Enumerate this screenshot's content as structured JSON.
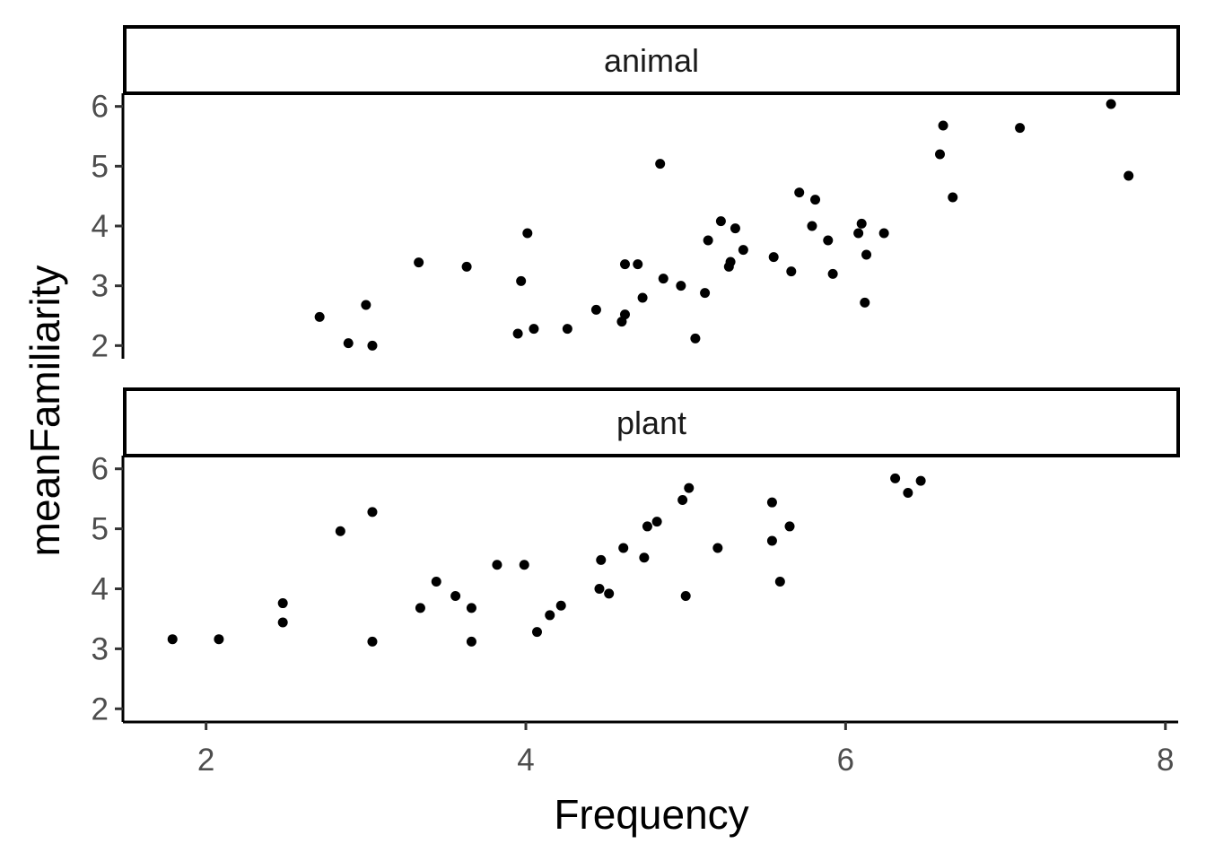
{
  "chart_data": {
    "type": "scatter",
    "xlabel": "Frequency",
    "ylabel": "meanFamiliarity",
    "xlim": [
      1.48,
      8.08
    ],
    "ylim": [
      1.78,
      6.22
    ],
    "x_ticks": [
      "2",
      "4",
      "6",
      "8"
    ],
    "y_ticks": [
      "2",
      "3",
      "4",
      "5",
      "6"
    ],
    "grid": false,
    "point_color": "#000000",
    "facets": [
      {
        "label": "animal",
        "points": [
          {
            "x": 2.71,
            "y": 2.48
          },
          {
            "x": 2.89,
            "y": 2.04
          },
          {
            "x": 3.0,
            "y": 2.68
          },
          {
            "x": 3.04,
            "y": 2.0
          },
          {
            "x": 3.33,
            "y": 3.39
          },
          {
            "x": 3.63,
            "y": 3.32
          },
          {
            "x": 3.95,
            "y": 2.2
          },
          {
            "x": 3.97,
            "y": 3.08
          },
          {
            "x": 4.01,
            "y": 3.88
          },
          {
            "x": 4.05,
            "y": 2.28
          },
          {
            "x": 4.26,
            "y": 2.28
          },
          {
            "x": 4.44,
            "y": 2.6
          },
          {
            "x": 4.6,
            "y": 2.4
          },
          {
            "x": 4.62,
            "y": 2.52
          },
          {
            "x": 4.62,
            "y": 3.36
          },
          {
            "x": 4.7,
            "y": 3.36
          },
          {
            "x": 4.73,
            "y": 2.8
          },
          {
            "x": 4.84,
            "y": 5.04
          },
          {
            "x": 4.86,
            "y": 3.12
          },
          {
            "x": 4.97,
            "y": 3.0
          },
          {
            "x": 5.06,
            "y": 2.12
          },
          {
            "x": 5.12,
            "y": 2.88
          },
          {
            "x": 5.14,
            "y": 3.76
          },
          {
            "x": 5.22,
            "y": 4.08
          },
          {
            "x": 5.27,
            "y": 3.32
          },
          {
            "x": 5.28,
            "y": 3.4
          },
          {
            "x": 5.31,
            "y": 3.96
          },
          {
            "x": 5.36,
            "y": 3.6
          },
          {
            "x": 5.55,
            "y": 3.48
          },
          {
            "x": 5.66,
            "y": 3.24
          },
          {
            "x": 5.71,
            "y": 4.56
          },
          {
            "x": 5.79,
            "y": 4.0
          },
          {
            "x": 5.81,
            "y": 4.44
          },
          {
            "x": 5.89,
            "y": 3.76
          },
          {
            "x": 5.92,
            "y": 3.2
          },
          {
            "x": 6.08,
            "y": 3.88
          },
          {
            "x": 6.1,
            "y": 4.04
          },
          {
            "x": 6.12,
            "y": 2.72
          },
          {
            "x": 6.13,
            "y": 3.52
          },
          {
            "x": 6.24,
            "y": 3.88
          },
          {
            "x": 6.59,
            "y": 5.2
          },
          {
            "x": 6.61,
            "y": 5.68
          },
          {
            "x": 6.67,
            "y": 4.48
          },
          {
            "x": 7.09,
            "y": 5.64
          },
          {
            "x": 7.66,
            "y": 6.04
          },
          {
            "x": 7.77,
            "y": 4.84
          }
        ]
      },
      {
        "label": "plant",
        "points": [
          {
            "x": 1.79,
            "y": 3.16
          },
          {
            "x": 2.08,
            "y": 3.16
          },
          {
            "x": 2.48,
            "y": 3.76
          },
          {
            "x": 2.48,
            "y": 3.44
          },
          {
            "x": 2.84,
            "y": 4.96
          },
          {
            "x": 3.04,
            "y": 5.28
          },
          {
            "x": 3.04,
            "y": 3.12
          },
          {
            "x": 3.34,
            "y": 3.68
          },
          {
            "x": 3.44,
            "y": 4.12
          },
          {
            "x": 3.56,
            "y": 3.88
          },
          {
            "x": 3.66,
            "y": 3.68
          },
          {
            "x": 3.66,
            "y": 3.12
          },
          {
            "x": 3.82,
            "y": 4.4
          },
          {
            "x": 3.99,
            "y": 4.4
          },
          {
            "x": 4.07,
            "y": 3.28
          },
          {
            "x": 4.15,
            "y": 3.56
          },
          {
            "x": 4.22,
            "y": 3.72
          },
          {
            "x": 4.46,
            "y": 4.0
          },
          {
            "x": 4.47,
            "y": 4.48
          },
          {
            "x": 4.52,
            "y": 3.92
          },
          {
            "x": 4.61,
            "y": 4.68
          },
          {
            "x": 4.74,
            "y": 4.52
          },
          {
            "x": 4.76,
            "y": 5.04
          },
          {
            "x": 4.82,
            "y": 5.12
          },
          {
            "x": 4.98,
            "y": 5.48
          },
          {
            "x": 5.02,
            "y": 5.68
          },
          {
            "x": 5.0,
            "y": 3.88
          },
          {
            "x": 5.2,
            "y": 4.68
          },
          {
            "x": 5.54,
            "y": 5.44
          },
          {
            "x": 5.54,
            "y": 4.8
          },
          {
            "x": 5.59,
            "y": 4.12
          },
          {
            "x": 5.65,
            "y": 5.04
          },
          {
            "x": 6.31,
            "y": 5.84
          },
          {
            "x": 6.39,
            "y": 5.6
          },
          {
            "x": 6.47,
            "y": 5.8
          }
        ]
      }
    ]
  }
}
